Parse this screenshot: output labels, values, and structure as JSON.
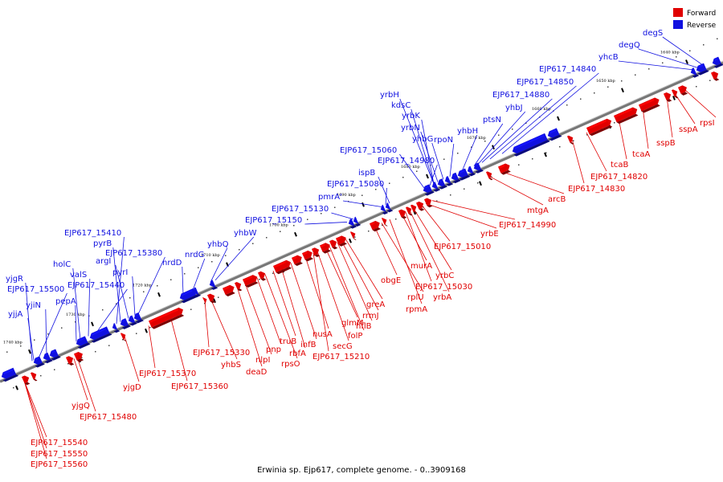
{
  "caption": "Erwinia sp. Ejp617, complete genome. - 0..3909168",
  "colors": {
    "forward": "#e00000",
    "reverse": "#1010e0",
    "axis": "#888888"
  },
  "legend": [
    {
      "label": "Forward",
      "strand": "forward"
    },
    {
      "label": "Reverse",
      "strand": "reverse"
    }
  ],
  "ticks": [
    "1740 kbp",
    "1730 kbp",
    "1720 kbp",
    "1710 kbp",
    "1700 kbp",
    "1690 kbp",
    "1680 kbp",
    "1670 kbp",
    "1660 kbp",
    "1650 kbp",
    "1640 kbp"
  ],
  "reverse_labels": [
    "yjgR",
    "EJP617_15500",
    "yjjA",
    "yjiN",
    "holC",
    "valS",
    "EJP617_15440",
    "pepA",
    "EJP617_15410",
    "pyrB",
    "argI",
    "pyrI",
    "EJP617_15380",
    "nrdD",
    "nrdG",
    "yhbQ",
    "yhbW",
    "EJP617_15150",
    "EJP617_15130",
    "pmrA'",
    "EJP617_15080",
    "ispB",
    "EJP617_15060",
    "EJP617_14980",
    "rpoN",
    "yhbG",
    "yrbN",
    "yrbK",
    "kdsC",
    "yrbH",
    "yhbH",
    "ptsN",
    "yhbJ",
    "EJP617_14880",
    "EJP617_14850",
    "EJP617_14840",
    "yhcB",
    "degQ",
    "degS"
  ],
  "forward_labels": [
    "EJP617_15540",
    "EJP617_15550",
    "EJP617_15560",
    "yjgQ",
    "EJP617_15480",
    "yjgD",
    "EJP617_15370",
    "EJP617_15360",
    "EJP617_15330",
    "yhbS",
    "deaD",
    "nlpI",
    "pnp",
    "rpsO",
    "truB",
    "rbfA",
    "infB",
    "nusA",
    "EJP617_15210",
    "secG",
    "glmM",
    "folP",
    "hflB",
    "rrmJ",
    "greA",
    "obgE",
    "rplU",
    "rpmA",
    "murA",
    "EJP617_15030",
    "yrbA",
    "yrbC",
    "EJP617_15010",
    "yrbE",
    "EJP617_14990",
    "mtgA",
    "arcB",
    "EJP617_14830",
    "EJP617_14820",
    "tcaB",
    "tcaA",
    "sspB",
    "sspA",
    "rpsI"
  ]
}
